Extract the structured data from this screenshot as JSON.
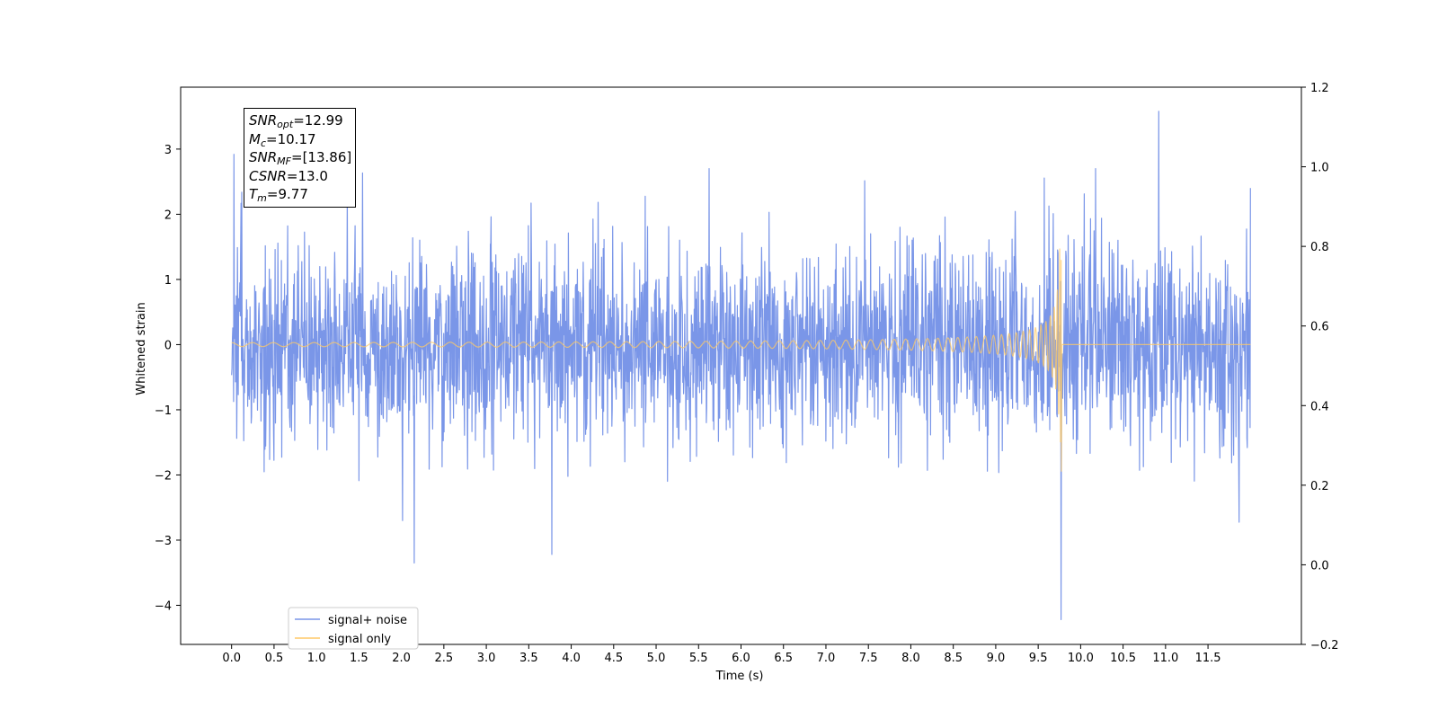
{
  "chart_data": {
    "type": "line",
    "xlabel": "Time (s)",
    "ylabel": "Whitened strain",
    "xlim": [
      -0.6,
      12.6
    ],
    "ylim": [
      -4.6,
      3.95
    ],
    "y2lim": [
      -0.2,
      1.2
    ],
    "xticks": [
      "0.0",
      "0.5",
      "1.0",
      "1.5",
      "2.0",
      "2.5",
      "3.0",
      "3.5",
      "4.0",
      "4.5",
      "5.0",
      "5.5",
      "6.0",
      "6.5",
      "7.0",
      "7.5",
      "8.0",
      "8.5",
      "9.0",
      "9.5",
      "10.0",
      "10.5",
      "11.0",
      "11.5"
    ],
    "yticks": [
      "3",
      "2",
      "1",
      "0",
      "−1",
      "−2",
      "−3",
      "−4"
    ],
    "y2ticks": [
      "1.2",
      "1.0",
      "0.8",
      "0.6",
      "0.4",
      "0.2",
      "0.0",
      "−0.2"
    ],
    "legend": {
      "position": "lower-left",
      "entries": [
        "signal+ noise",
        "signal only"
      ]
    },
    "series": [
      {
        "name": "signal+ noise",
        "color": "#7a96e8",
        "kind": "noise",
        "x_range": [
          0.0,
          12.0
        ],
        "std_estimate": 0.78,
        "peaks": [
          [
            0.03,
            2.92
          ],
          [
            10.92,
            3.58
          ],
          [
            9.77,
            -4.22
          ],
          [
            2.15,
            -3.35
          ],
          [
            3.77,
            -3.22
          ]
        ]
      },
      {
        "name": "signal only",
        "color": "#ffc966",
        "kind": "chirp",
        "x_range": [
          0.0,
          12.0
        ],
        "merger_time": 9.77,
        "peak_amplitude": [
          1.3,
          -1.95
        ],
        "early_amplitude": 0.03
      }
    ]
  },
  "info": {
    "snr_opt_label": "SNR",
    "snr_opt_sub": "opt",
    "snr_opt_value": "=12.99",
    "mc_label": "M",
    "mc_sub": "c",
    "mc_value": "=10.17",
    "snr_mf_label": "SNR",
    "snr_mf_sub": "MF",
    "snr_mf_value": "=[13.86]",
    "csnr_label": "CSNR",
    "csnr_value": "=13.0",
    "tm_label": "T",
    "tm_sub": "m",
    "tm_value": "=9.77"
  }
}
